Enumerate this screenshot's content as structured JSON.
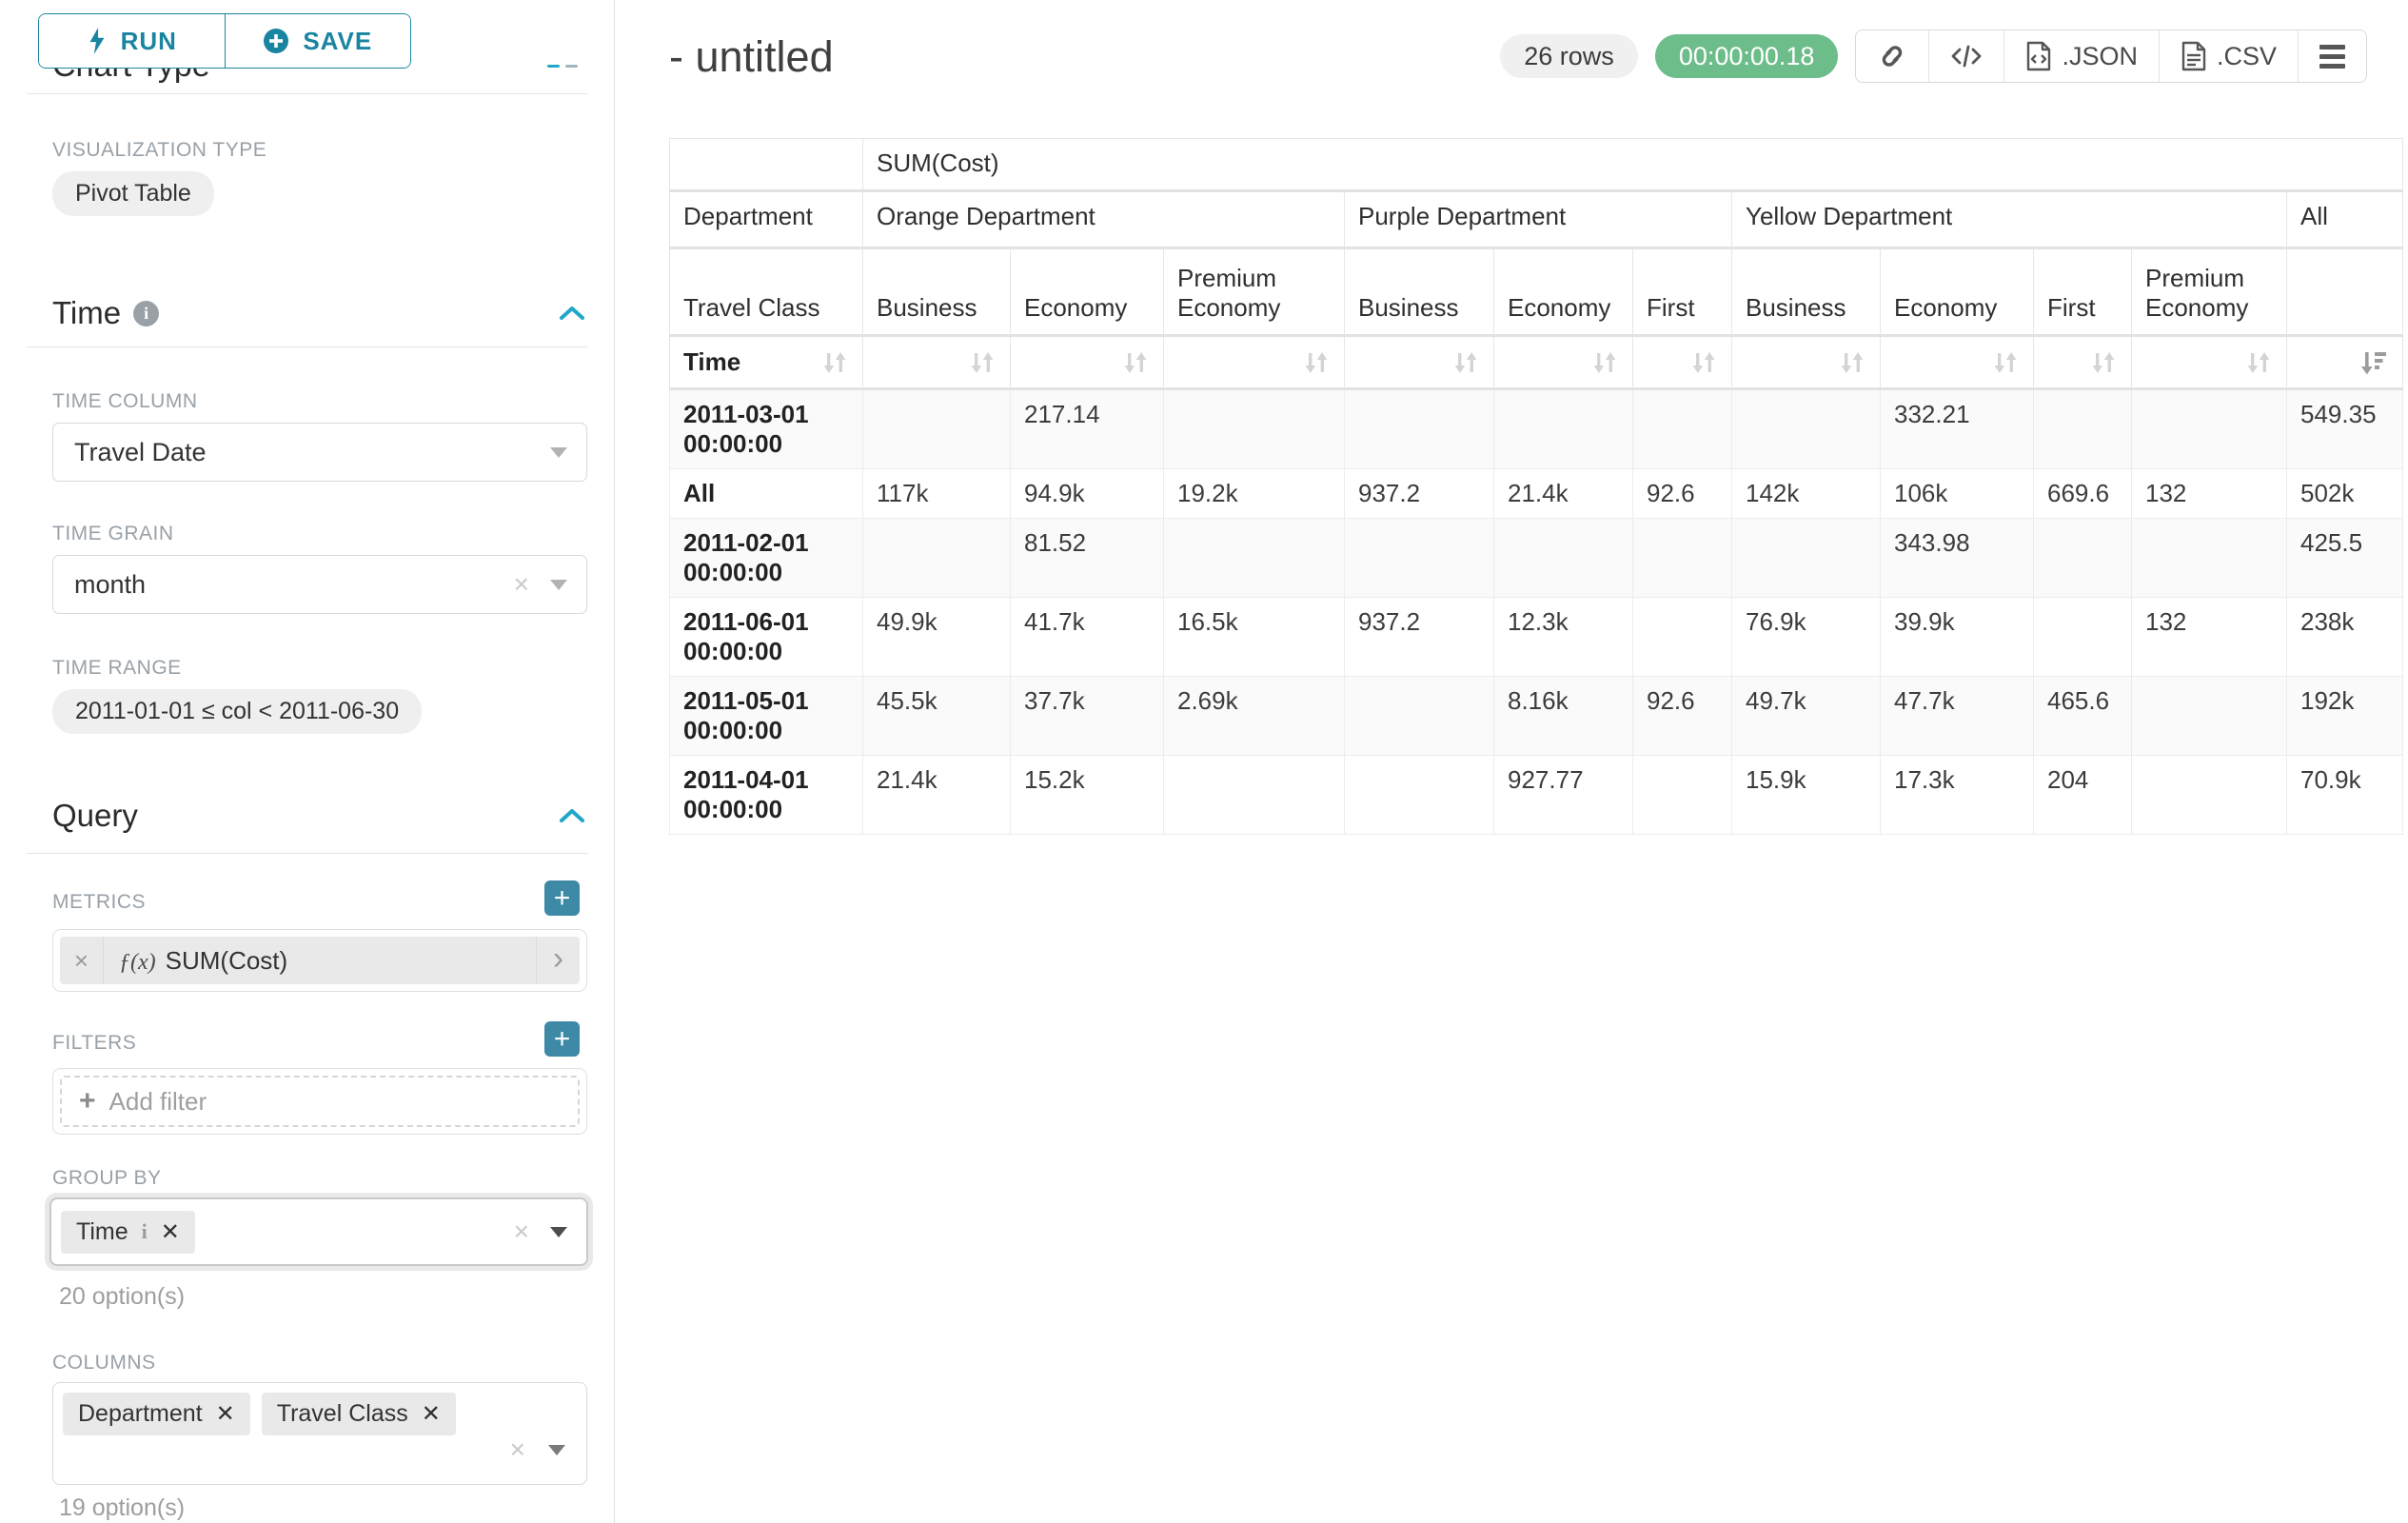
{
  "colors": {
    "accent": "#20a7c9",
    "button_teal": "#1a85a0",
    "plus_teal": "#3d89a6",
    "success_green": "#6dbd8a"
  },
  "sidebar": {
    "run_label": "RUN",
    "save_label": "SAVE",
    "clipped_section_title": "Chart Type",
    "visualization_type_label": "VISUALIZATION TYPE",
    "visualization_type_value": "Pivot Table",
    "time": {
      "title": "Time",
      "column_label": "TIME COLUMN",
      "column_value": "Travel Date",
      "grain_label": "TIME GRAIN",
      "grain_value": "month",
      "range_label": "TIME RANGE",
      "range_value": "2011-01-01 ≤ col < 2011-06-30"
    },
    "query": {
      "title": "Query",
      "metrics_label": "METRICS",
      "metric_fx": "ƒ(x)",
      "metric_value": "SUM(Cost)",
      "filters_label": "FILTERS",
      "add_filter_label": "Add filter",
      "group_by_label": "GROUP BY",
      "group_by_chip": "Time",
      "group_by_options": "20 option(s)",
      "columns_label": "COLUMNS",
      "columns_chips": [
        "Department",
        "Travel Class"
      ],
      "columns_options": "19 option(s)"
    }
  },
  "header": {
    "title": "- untitled",
    "rows_badge": "26 rows",
    "duration_badge": "00:00:00.18",
    "json_label": ".JSON",
    "csv_label": ".CSV"
  },
  "pivot": {
    "metric_header": "SUM(Cost)",
    "dept_axis_label": "Department",
    "class_axis_label": "Travel Class",
    "time_axis_label": "Time",
    "col_groups": [
      {
        "label": "Orange Department",
        "span": 3
      },
      {
        "label": "Purple Department",
        "span": 3
      },
      {
        "label": "Yellow Department",
        "span": 4
      },
      {
        "label": "All",
        "span": 1
      }
    ],
    "leaf_cols": [
      "Business",
      "Economy",
      "Premium Economy",
      "Business",
      "Economy",
      "First",
      "Business",
      "Economy",
      "First",
      "Premium Economy",
      ""
    ],
    "desc_sorted_col_index": 10,
    "rows": [
      {
        "label": "2011-03-01 00:00:00",
        "values": [
          "",
          "217.14",
          "",
          "",
          "",
          "",
          "",
          "332.21",
          "",
          "",
          "549.35"
        ]
      },
      {
        "label": "All",
        "values": [
          "117k",
          "94.9k",
          "19.2k",
          "937.2",
          "21.4k",
          "92.6",
          "142k",
          "106k",
          "669.6",
          "132",
          "502k"
        ]
      },
      {
        "label": "2011-02-01 00:00:00",
        "values": [
          "",
          "81.52",
          "",
          "",
          "",
          "",
          "",
          "343.98",
          "",
          "",
          "425.5"
        ]
      },
      {
        "label": "2011-06-01 00:00:00",
        "values": [
          "49.9k",
          "41.7k",
          "16.5k",
          "937.2",
          "12.3k",
          "",
          "76.9k",
          "39.9k",
          "",
          "132",
          "238k"
        ]
      },
      {
        "label": "2011-05-01 00:00:00",
        "values": [
          "45.5k",
          "37.7k",
          "2.69k",
          "",
          "8.16k",
          "92.6",
          "49.7k",
          "47.7k",
          "465.6",
          "",
          "192k"
        ]
      },
      {
        "label": "2011-04-01 00:00:00",
        "values": [
          "21.4k",
          "15.2k",
          "",
          "",
          "927.77",
          "",
          "15.9k",
          "17.3k",
          "204",
          "",
          "70.9k"
        ]
      }
    ]
  }
}
